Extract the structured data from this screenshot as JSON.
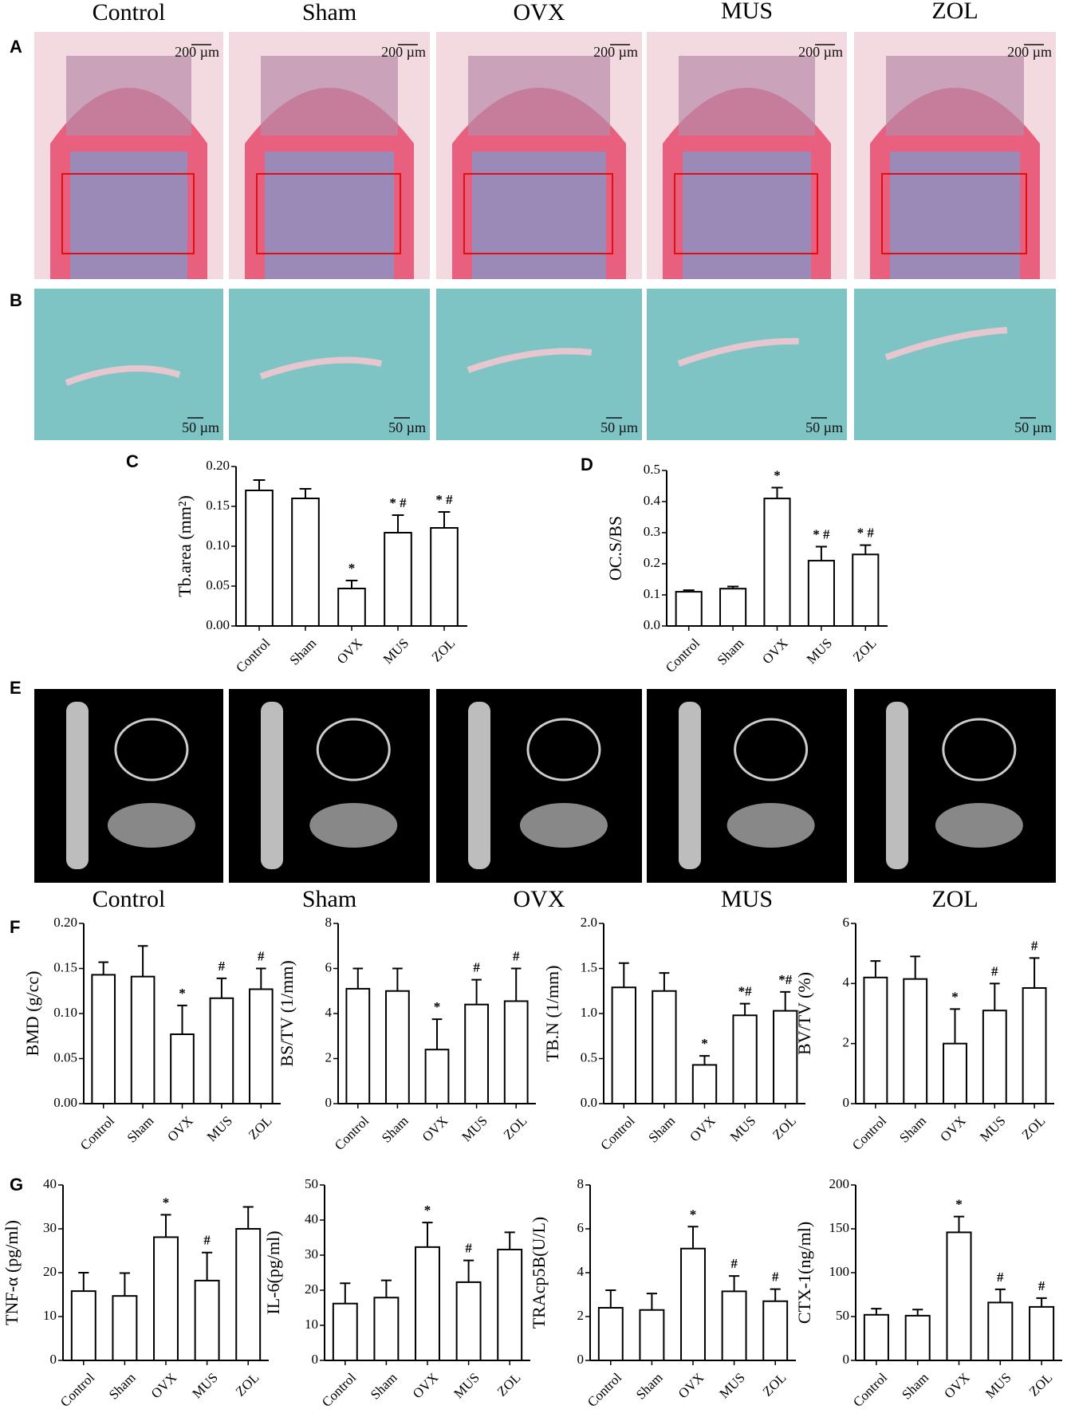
{
  "column_titles": [
    "Control",
    "Sham",
    "OVX",
    "MUS",
    "ZOL"
  ],
  "lower_titles": [
    "Control",
    "Sham",
    "OVX",
    "MUS",
    "ZOL"
  ],
  "panel_labels": [
    "A",
    "B",
    "C",
    "D",
    "E",
    "F",
    "G"
  ],
  "scale_bars_a": [
    "200 µm",
    "200 µm",
    "200 µm",
    "200 µm",
    "200 µm"
  ],
  "scale_bars_b": [
    "50 µm",
    "50 µm",
    "50 µm",
    "50 µm",
    "50 µm"
  ],
  "chart_data": [
    {
      "type": "bar",
      "y_label": "Tb.area (mm²)",
      "categories": [
        "Control",
        "Sham",
        "OVX",
        "MUS",
        "ZOL"
      ],
      "values": [
        0.17,
        0.16,
        0.047,
        0.117,
        0.123
      ],
      "errors": [
        0.013,
        0.012,
        0.01,
        0.022,
        0.02
      ],
      "annotations": [
        null,
        null,
        "*",
        "* #",
        "* #"
      ],
      "ylim": [
        0,
        0.2
      ],
      "yticks": [
        {
          "value": 0,
          "label": "0.00"
        },
        0.05,
        {
          "value": 0.1,
          "label": "0.10"
        },
        0.15,
        {
          "value": 0.2,
          "label": "0.20"
        }
      ]
    },
    {
      "type": "bar",
      "y_label": "OC.S/BS",
      "categories": [
        "Control",
        "Sham",
        "OVX",
        "MUS",
        "ZOL"
      ],
      "values": [
        0.11,
        0.12,
        0.41,
        0.21,
        0.23
      ],
      "errors": [
        0.005,
        0.007,
        0.035,
        0.045,
        0.03
      ],
      "annotations": [
        null,
        null,
        "*",
        "* #",
        "* #"
      ],
      "ylim": [
        0,
        0.5
      ],
      "yticks": [
        {
          "value": 0,
          "label": "0.0"
        },
        0.1,
        0.2,
        0.3,
        0.4,
        0.5
      ]
    },
    {
      "type": "bar",
      "y_label": "BMD (g/cc)",
      "categories": [
        "Control",
        "Sham",
        "OVX",
        "MUS",
        "ZOL"
      ],
      "values": [
        0.143,
        0.141,
        0.077,
        0.117,
        0.127
      ],
      "errors": [
        0.014,
        0.034,
        0.032,
        0.022,
        0.023
      ],
      "annotations": [
        null,
        null,
        "*",
        "#",
        "#"
      ],
      "ylim": [
        0,
        0.2
      ],
      "yticks": [
        {
          "value": 0,
          "label": "0.00"
        },
        0.05,
        {
          "value": 0.1,
          "label": "0.10"
        },
        0.15,
        {
          "value": 0.2,
          "label": "0.20"
        }
      ]
    },
    {
      "type": "bar",
      "y_label": "BS/TV (1/mm)",
      "categories": [
        "Control",
        "Sham",
        "OVX",
        "MUS",
        "ZOL"
      ],
      "values": [
        5.1,
        5.0,
        2.4,
        4.4,
        4.55
      ],
      "errors": [
        0.9,
        1.0,
        1.35,
        1.1,
        1.45
      ],
      "annotations": [
        null,
        null,
        "*",
        "#",
        "#"
      ],
      "ylim": [
        0,
        8
      ],
      "yticks": [
        0,
        2,
        4,
        6,
        8
      ]
    },
    {
      "type": "bar",
      "y_label": "TB.N (1/mm)",
      "categories": [
        "Control",
        "Sham",
        "OVX",
        "MUS",
        "ZOL"
      ],
      "values": [
        1.29,
        1.25,
        0.43,
        0.98,
        1.03
      ],
      "errors": [
        0.27,
        0.2,
        0.1,
        0.13,
        0.21
      ],
      "annotations": [
        null,
        null,
        "*",
        "*#",
        "*#"
      ],
      "ylim": [
        0,
        2
      ],
      "yticks": [
        {
          "value": 0,
          "label": "0.0"
        },
        0.5,
        {
          "value": 1,
          "label": "1.0"
        },
        1.5,
        {
          "value": 2,
          "label": "2.0"
        }
      ]
    },
    {
      "type": "bar",
      "y_label": "BV/TV (%)",
      "categories": [
        "Control",
        "Sham",
        "OVX",
        "MUS",
        "ZOL"
      ],
      "values": [
        4.2,
        4.15,
        2.0,
        3.1,
        3.85
      ],
      "errors": [
        0.55,
        0.75,
        1.15,
        0.9,
        1.0
      ],
      "annotations": [
        null,
        null,
        "*",
        "#",
        "#"
      ],
      "ylim": [
        0,
        6
      ],
      "yticks": [
        0,
        2,
        4,
        6
      ]
    },
    {
      "type": "bar",
      "y_label": "TNF-α (pg/ml)",
      "categories": [
        "Control",
        "Sham",
        "OVX",
        "MUS",
        "ZOL"
      ],
      "values": [
        15.8,
        14.7,
        28.1,
        18.2,
        30
      ],
      "errors": [
        4.2,
        5.2,
        5.1,
        6.4,
        5
      ],
      "annotations": [
        null,
        null,
        "*",
        "#",
        null
      ],
      "ylim": [
        0,
        40
      ],
      "yticks": [
        0,
        10,
        20,
        30,
        40
      ]
    },
    {
      "type": "bar",
      "y_label": "IL-6(pg/ml)",
      "categories": [
        "Control",
        "Sham",
        "OVX",
        "MUS",
        "ZOL"
      ],
      "values": [
        16.2,
        17.9,
        32.3,
        22.3,
        31.6
      ],
      "errors": [
        5.8,
        4.9,
        7.0,
        6.2,
        4.9
      ],
      "annotations": [
        null,
        null,
        "*",
        "#",
        null
      ],
      "ylim": [
        0,
        50
      ],
      "yticks": [
        0,
        10,
        20,
        30,
        40,
        50
      ]
    },
    {
      "type": "bar",
      "y_label": "TRAcp5B(U/L)",
      "categories": [
        "Control",
        "Sham",
        "OVX",
        "MUS",
        "ZOL"
      ],
      "values": [
        2.4,
        2.3,
        5.1,
        3.15,
        2.7
      ],
      "errors": [
        0.8,
        0.75,
        1.0,
        0.7,
        0.55
      ],
      "annotations": [
        null,
        null,
        "*",
        "#",
        "#"
      ],
      "ylim": [
        0,
        8
      ],
      "yticks": [
        0,
        2,
        4,
        6,
        8
      ]
    },
    {
      "type": "bar",
      "y_label": "CTX-1(ng/ml)",
      "categories": [
        "Control",
        "Sham",
        "OVX",
        "MUS",
        "ZOL"
      ],
      "values": [
        52,
        51,
        146,
        66,
        61
      ],
      "errors": [
        7,
        7,
        18,
        15,
        10
      ],
      "annotations": [
        null,
        null,
        "*",
        "#",
        "#"
      ],
      "ylim": [
        0,
        200
      ],
      "yticks": [
        0,
        50,
        100,
        150,
        200
      ]
    }
  ]
}
